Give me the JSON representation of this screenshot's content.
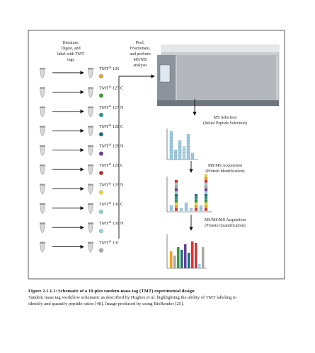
{
  "figure": {
    "step_left": [
      "Denature,",
      "Digest, and",
      "label with TMT",
      "tags"
    ],
    "step_pool": [
      "Pool,",
      "Fractionate,",
      "and perform",
      "MS/MS",
      "analysis"
    ],
    "tmt_labels": [
      {
        "prefix": "TMT",
        "superscript": "10",
        "tag": "126"
      },
      {
        "prefix": "TMT",
        "superscript": "10",
        "tag": "127 C"
      },
      {
        "prefix": "TMT",
        "superscript": "10",
        "tag": "127 N"
      },
      {
        "prefix": "TMT",
        "superscript": "10",
        "tag": "128 C"
      },
      {
        "prefix": "TMT",
        "superscript": "10",
        "tag": "128 N"
      },
      {
        "prefix": "TMT",
        "superscript": "10",
        "tag": "129 C"
      },
      {
        "prefix": "TMT",
        "superscript": "10",
        "tag": "129 N"
      },
      {
        "prefix": "TMT",
        "superscript": "10",
        "tag": "130 C"
      },
      {
        "prefix": "TMT",
        "superscript": "10",
        "tag": "130 N"
      },
      {
        "prefix": "TMT",
        "superscript": "10",
        "tag": "131"
      }
    ],
    "ms_steps": [
      {
        "title": "MS Selection",
        "subtitle": "(Initial Peptide Selection)"
      },
      {
        "title": "MS/MS Acquisition",
        "subtitle": "(Protein Identification)"
      },
      {
        "title": "MS/MS/MS Acquisition",
        "subtitle": "(Protein Quantification)"
      }
    ]
  },
  "caption": {
    "title": "Figure 2.1.1.1: Schematic of a 10-plex tandem-mass-tag (TMT) experimental design",
    "line1": {
      "before": "Tandem mass tag workflow schematic as described by Hughes ",
      "italic": "et al",
      "after": ", highlighting the ability of TMT labeling to"
    },
    "line2": "identify and quantify peptide ratios [48]. Image produced by using BioRender [25]."
  }
}
